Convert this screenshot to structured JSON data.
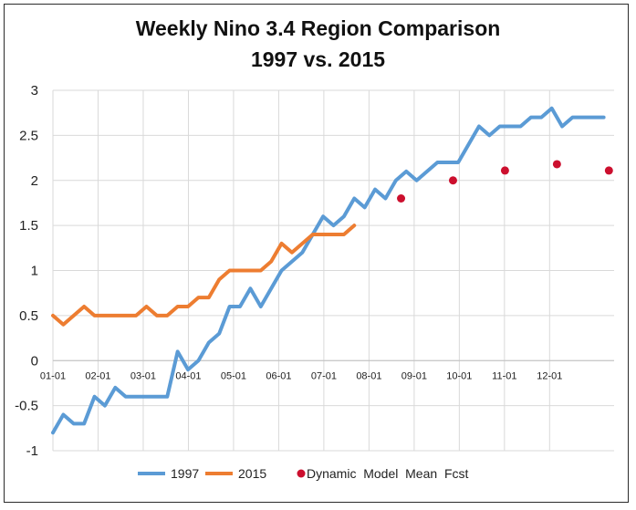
{
  "chart_data": {
    "type": "line",
    "title": "Weekly Nino 3.4 Region Comparison",
    "subtitle": "1997 vs. 2015",
    "ylim": [
      -1,
      3
    ],
    "y_ticks": [
      3,
      2.5,
      2,
      1.5,
      1,
      0.5,
      0,
      -0.5,
      -1
    ],
    "x_labels": [
      "01-01",
      "02-01",
      "03-01",
      "04-01",
      "05-01",
      "06-01",
      "07-01",
      "08-01",
      "09-01",
      "10-01",
      "11-01",
      "12-01"
    ],
    "x_unit": "week",
    "grid": true,
    "legend_position": "bottom",
    "series": [
      {
        "name": "1997",
        "color": "#5b9bd5",
        "values": [
          -0.8,
          -0.6,
          -0.7,
          -0.7,
          -0.4,
          -0.5,
          -0.3,
          -0.4,
          -0.4,
          -0.4,
          -0.4,
          -0.4,
          0.1,
          -0.1,
          0.0,
          0.2,
          0.3,
          0.6,
          0.6,
          0.8,
          0.6,
          0.8,
          1.0,
          1.1,
          1.2,
          1.4,
          1.6,
          1.5,
          1.6,
          1.8,
          1.7,
          1.9,
          1.8,
          2.0,
          2.1,
          2.0,
          2.1,
          2.2,
          2.2,
          2.2,
          2.4,
          2.6,
          2.5,
          2.6,
          2.6,
          2.6,
          2.7,
          2.7,
          2.8,
          2.6,
          2.7,
          2.7,
          2.7,
          2.7
        ]
      },
      {
        "name": "2015",
        "color": "#ed7d31",
        "values": [
          0.5,
          0.4,
          0.5,
          0.6,
          0.5,
          0.5,
          0.5,
          0.5,
          0.5,
          0.6,
          0.5,
          0.5,
          0.6,
          0.6,
          0.7,
          0.7,
          0.9,
          1.0,
          1.0,
          1.0,
          1.0,
          1.1,
          1.3,
          1.2,
          1.3,
          1.4,
          1.4,
          1.4,
          1.4,
          1.5
        ]
      }
    ],
    "forecast": {
      "name": "Dynamic  Model  Mean  Fcst",
      "color": "#cc0f2e",
      "points": [
        {
          "x": 33.5,
          "y": 1.8
        },
        {
          "x": 38.5,
          "y": 2.0
        },
        {
          "x": 43.5,
          "y": 2.11
        },
        {
          "x": 48.5,
          "y": 2.18
        },
        {
          "x": 53.5,
          "y": 2.11
        }
      ]
    }
  }
}
